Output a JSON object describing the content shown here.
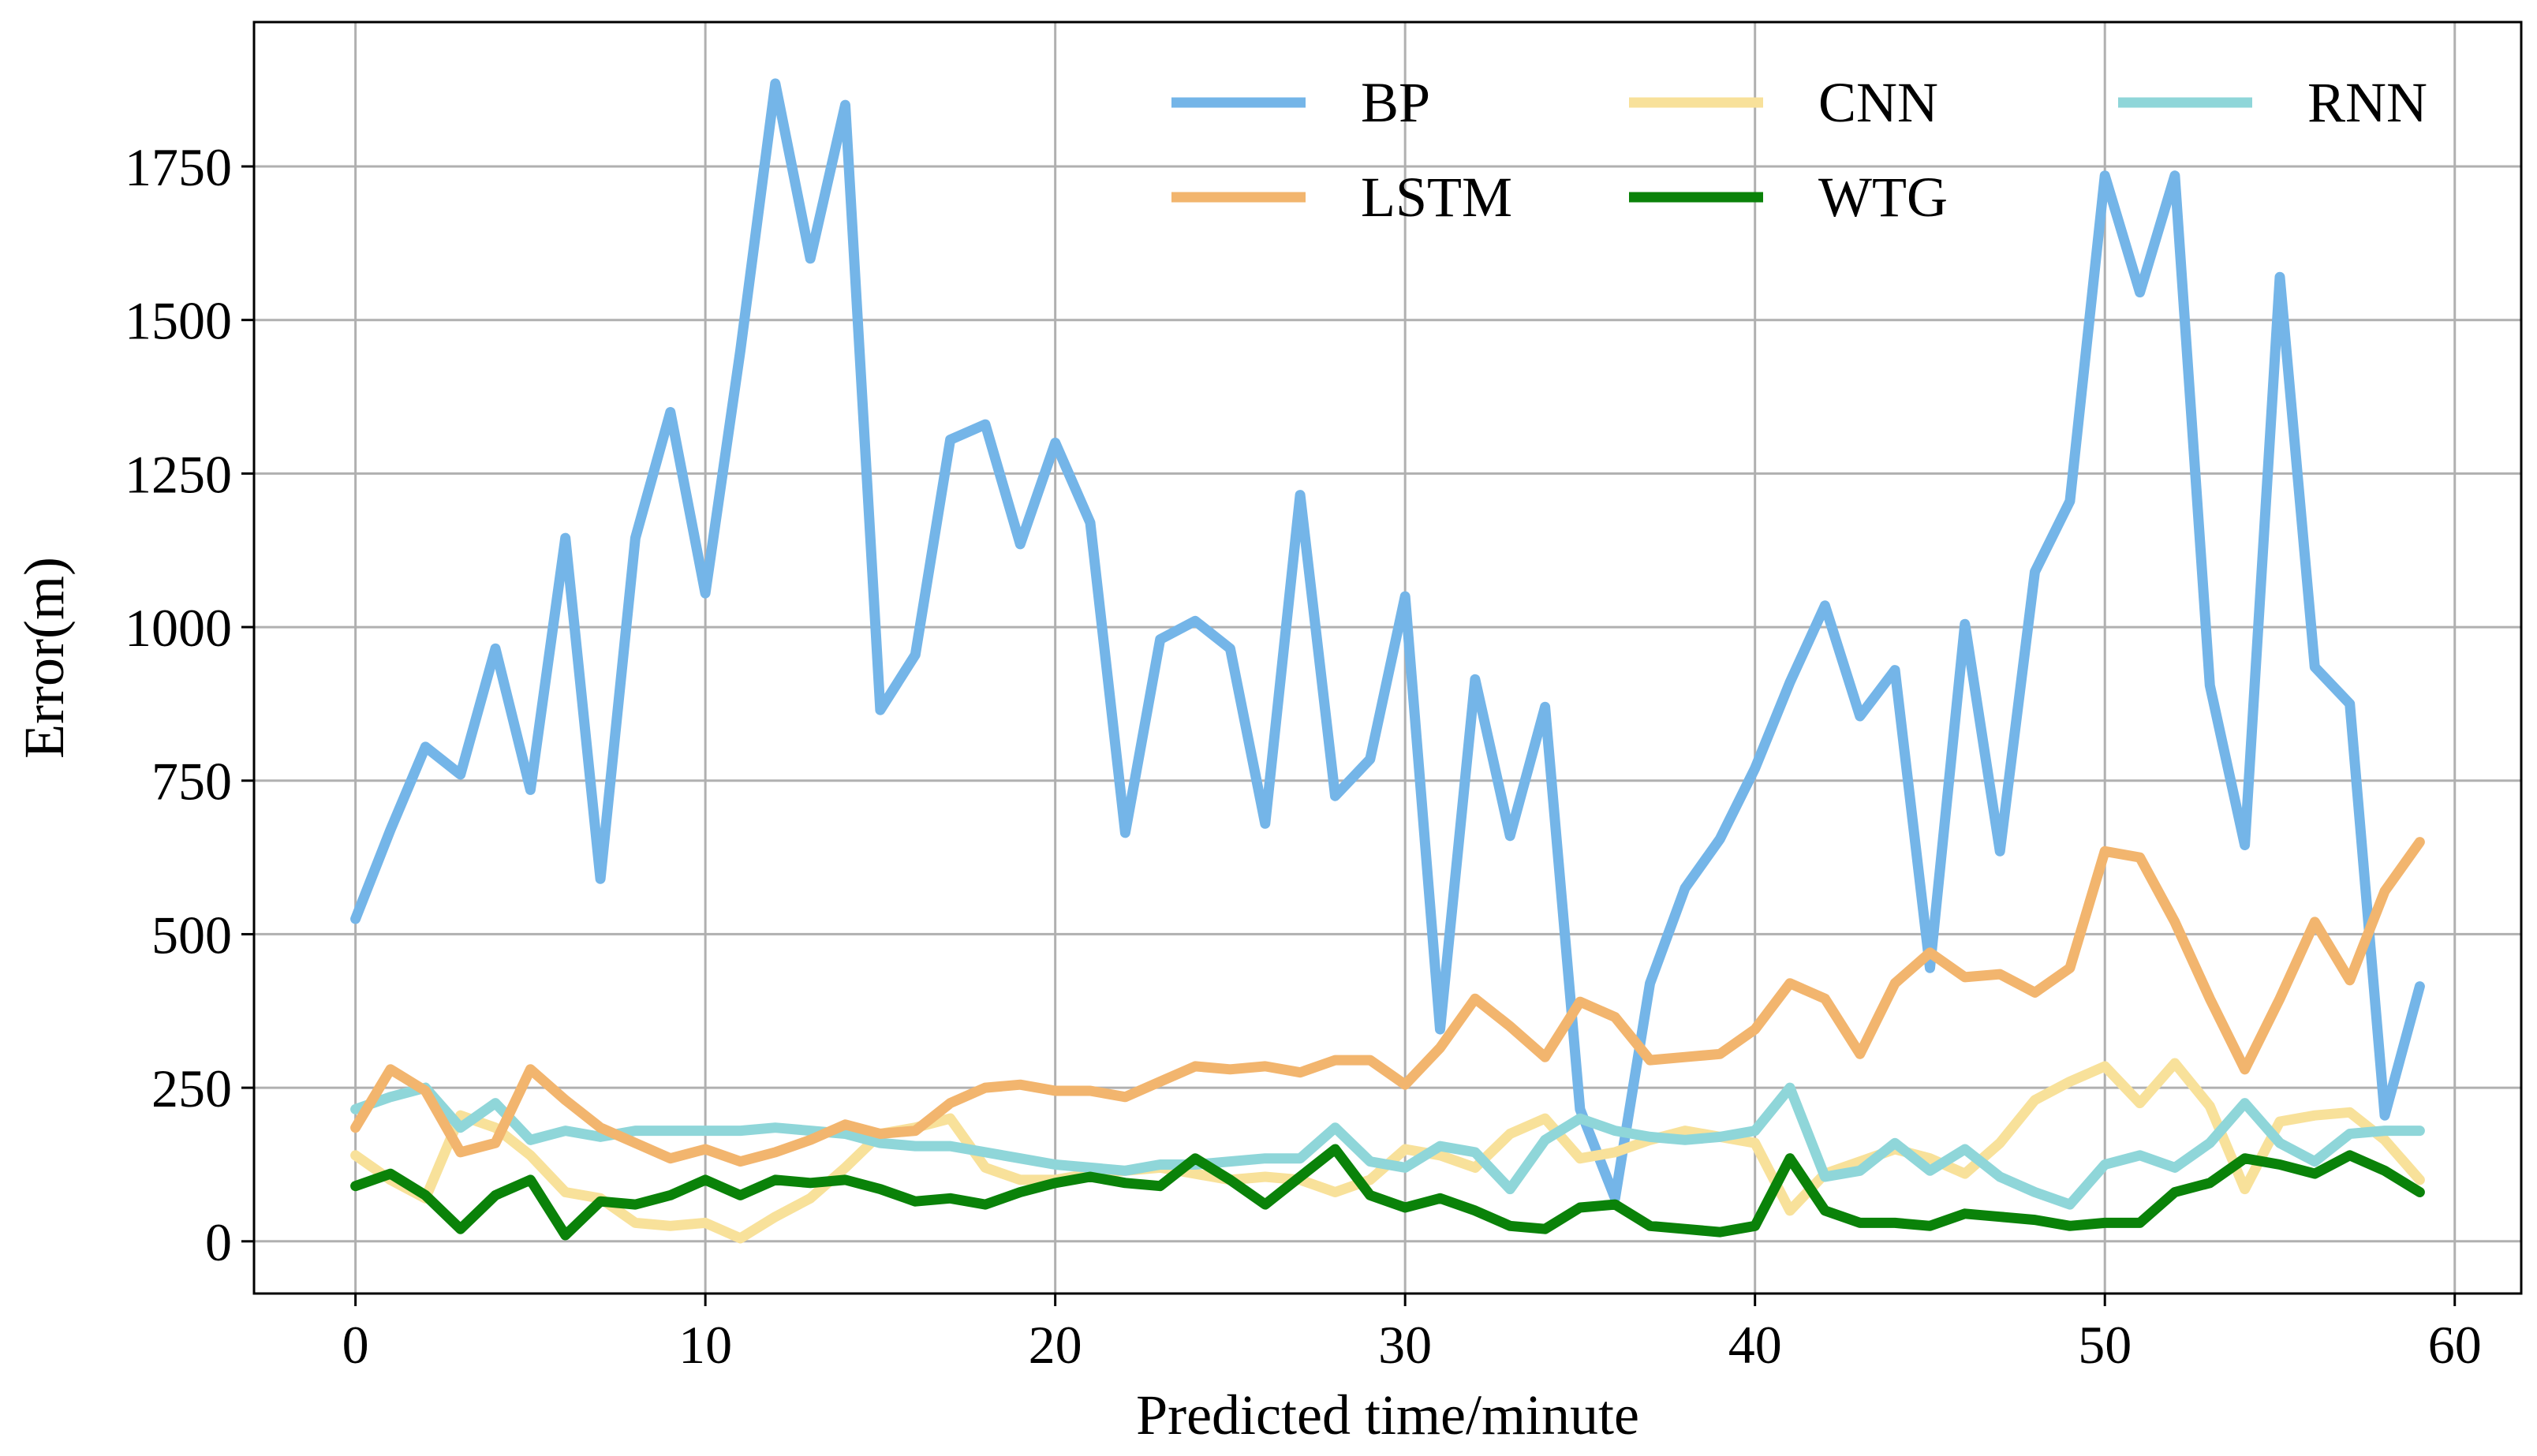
{
  "chart_data": {
    "type": "line",
    "title": "",
    "xlabel": "Predicted time/minute",
    "ylabel": "Error(m)",
    "xlim": [
      -2.9,
      61.9
    ],
    "ylim": [
      -85,
      1985
    ],
    "xticks": [
      0,
      10,
      20,
      30,
      40,
      50,
      60
    ],
    "yticks": [
      0,
      250,
      500,
      750,
      1000,
      1250,
      1500,
      1750
    ],
    "grid": true,
    "legend": {
      "placement": "top-right",
      "columns": 3
    },
    "x": [
      0,
      1,
      2,
      3,
      4,
      5,
      6,
      7,
      8,
      9,
      10,
      11,
      12,
      13,
      14,
      15,
      16,
      17,
      18,
      19,
      20,
      21,
      22,
      23,
      24,
      25,
      26,
      27,
      28,
      29,
      30,
      31,
      32,
      33,
      34,
      35,
      36,
      37,
      38,
      39,
      40,
      41,
      42,
      43,
      44,
      45,
      46,
      47,
      48,
      49,
      50,
      51,
      52,
      53,
      54,
      55,
      56,
      57,
      58,
      59
    ],
    "series": [
      {
        "name": "BP",
        "color": "#74b5e8",
        "values": [
          525,
          670,
          805,
          760,
          965,
          735,
          1145,
          590,
          1145,
          1350,
          1055,
          1450,
          1885,
          1600,
          1850,
          865,
          955,
          1305,
          1330,
          1135,
          1300,
          1170,
          665,
          980,
          1010,
          965,
          680,
          1215,
          725,
          785,
          1050,
          345,
          915,
          660,
          870,
          215,
          70,
          420,
          575,
          655,
          770,
          910,
          1035,
          855,
          930,
          445,
          1005,
          635,
          1090,
          1205,
          1735,
          1545,
          1735,
          905,
          645,
          1570,
          935,
          875,
          205,
          415
        ]
      },
      {
        "name": "CNN",
        "color": "#f8e19a",
        "values": [
          140,
          100,
          70,
          205,
          185,
          140,
          80,
          70,
          30,
          25,
          30,
          5,
          40,
          70,
          120,
          175,
          185,
          200,
          120,
          100,
          100,
          110,
          115,
          120,
          110,
          100,
          105,
          100,
          80,
          100,
          150,
          140,
          120,
          175,
          200,
          135,
          145,
          165,
          180,
          170,
          160,
          50,
          110,
          130,
          150,
          135,
          110,
          160,
          230,
          260,
          285,
          225,
          290,
          220,
          85,
          195,
          205,
          210,
          165,
          100
        ]
      },
      {
        "name": "RNN",
        "color": "#8fd6d9",
        "values": [
          215,
          235,
          250,
          185,
          225,
          165,
          180,
          170,
          180,
          180,
          180,
          180,
          185,
          180,
          175,
          160,
          155,
          155,
          145,
          135,
          125,
          120,
          115,
          125,
          125,
          130,
          135,
          135,
          185,
          130,
          120,
          155,
          145,
          85,
          165,
          200,
          180,
          170,
          165,
          170,
          180,
          250,
          105,
          115,
          160,
          115,
          150,
          105,
          80,
          60,
          125,
          140,
          120,
          160,
          225,
          160,
          130,
          175,
          180,
          180
        ]
      },
      {
        "name": "LSTM",
        "color": "#f2b56e",
        "values": [
          185,
          280,
          245,
          145,
          160,
          280,
          230,
          185,
          160,
          135,
          150,
          130,
          145,
          165,
          190,
          175,
          180,
          225,
          250,
          255,
          245,
          245,
          235,
          260,
          285,
          280,
          285,
          275,
          295,
          295,
          255,
          315,
          395,
          350,
          300,
          390,
          365,
          295,
          300,
          305,
          345,
          420,
          395,
          305,
          420,
          470,
          430,
          435,
          405,
          445,
          635,
          625,
          520,
          395,
          280,
          395,
          520,
          425,
          570,
          650
        ]
      },
      {
        "name": "WTG",
        "color": "#0a8209",
        "values": [
          90,
          110,
          75,
          20,
          75,
          100,
          10,
          65,
          60,
          75,
          100,
          75,
          100,
          95,
          100,
          85,
          65,
          70,
          60,
          80,
          95,
          105,
          95,
          90,
          135,
          100,
          60,
          105,
          150,
          75,
          55,
          70,
          50,
          25,
          20,
          55,
          60,
          25,
          20,
          15,
          25,
          135,
          50,
          30,
          30,
          25,
          45,
          40,
          35,
          25,
          30,
          30,
          80,
          95,
          135,
          125,
          110,
          140,
          115,
          80
        ]
      }
    ]
  }
}
